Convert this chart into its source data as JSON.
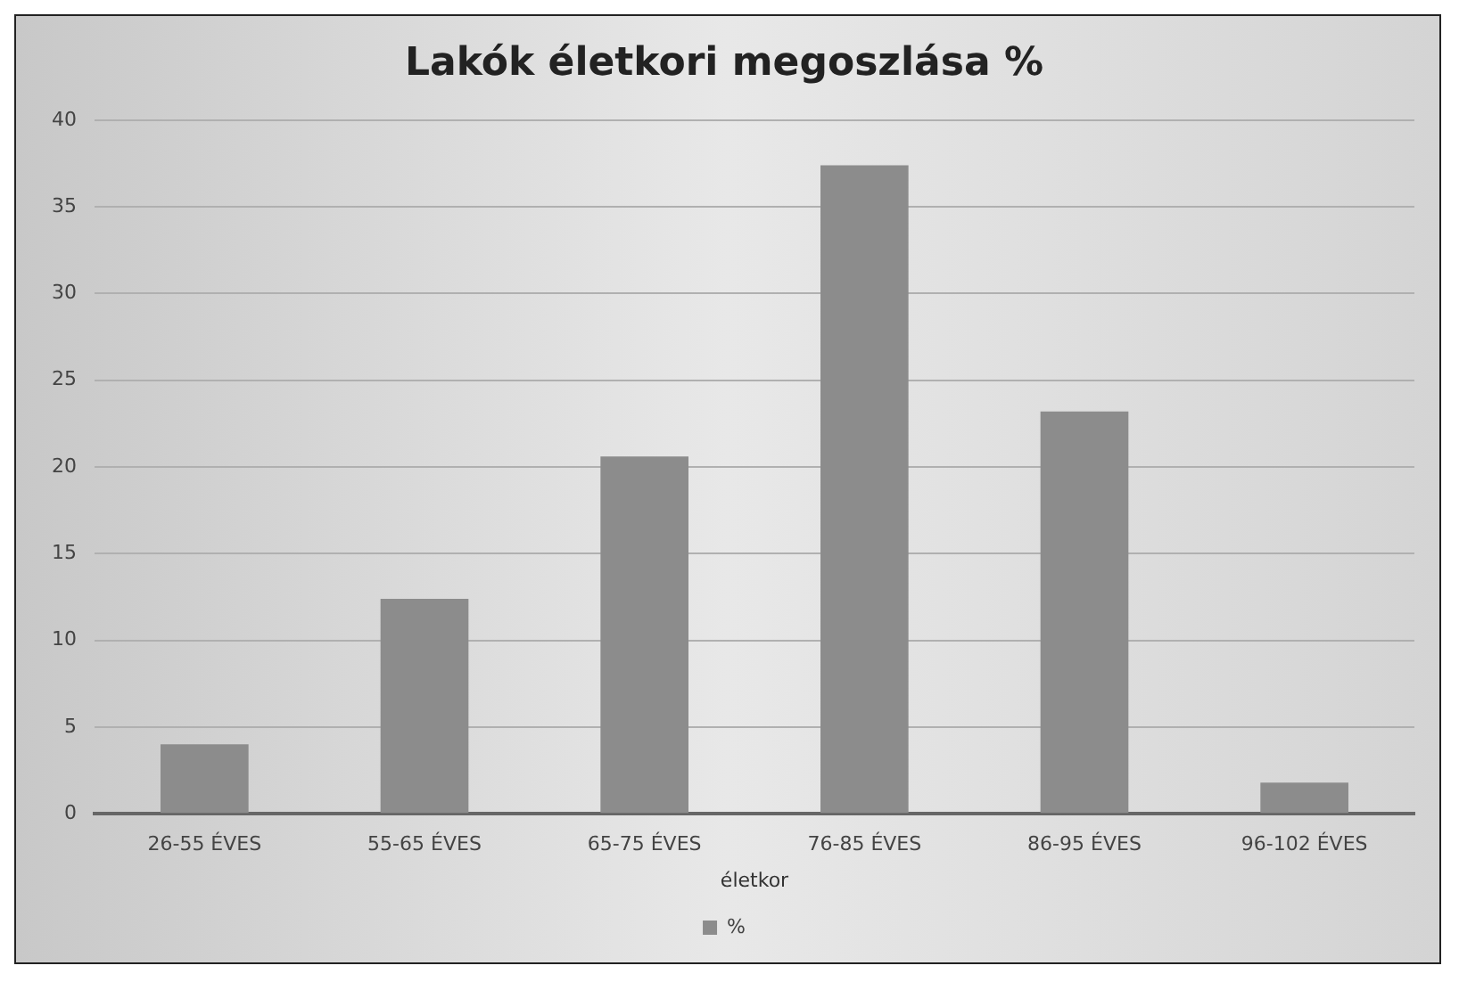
{
  "chart_data": {
    "type": "bar",
    "title": "Lakók életkori megoszlása %",
    "xlabel": "életkor",
    "categories": [
      "26-55 ÉVES",
      "55-65 ÉVES",
      "65-75 ÉVES",
      "76-85 ÉVES",
      "86-95 ÉVES",
      "96-102 ÉVES"
    ],
    "series": [
      {
        "name": "%",
        "color": "#8c8c8c",
        "values": [
          4.0,
          12.4,
          20.6,
          37.4,
          23.2,
          1.8
        ]
      }
    ],
    "ylim": [
      0,
      40
    ],
    "yticks": [
      0,
      5,
      10,
      15,
      20,
      25,
      30,
      35,
      40
    ],
    "grid": "y",
    "legend": "bottom"
  }
}
